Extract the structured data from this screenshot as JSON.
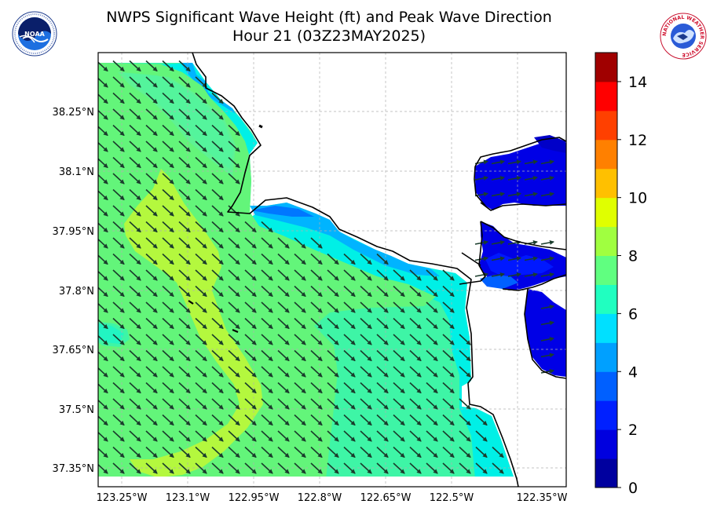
{
  "title": {
    "line1": "NWPS Significant Wave Height (ft) and Peak Wave Direction",
    "line2": "Hour 21 (03Z23MAY2025)"
  },
  "logos": {
    "left": "NOAA",
    "right_ring": "NATIONAL WEATHER SERVICE"
  },
  "map": {
    "lat_labels": [
      "38.25°N",
      "38.1°N",
      "37.95°N",
      "37.8°N",
      "37.65°N",
      "37.5°N",
      "37.35°N"
    ],
    "lon_labels": [
      "123.25°W",
      "123.1°W",
      "122.95°W",
      "122.8°W",
      "122.65°W",
      "122.5°W",
      "122.35°W"
    ],
    "peak_wave_direction": "NW (arrows pointing toward SE)"
  },
  "colorbar": {
    "min": 0,
    "max": 15,
    "ticks": [
      "0",
      "2",
      "4",
      "6",
      "8",
      "10",
      "12",
      "14"
    ],
    "colors": [
      "#00009f",
      "#0000df",
      "#0020ff",
      "#0060ff",
      "#00a0ff",
      "#00e0ff",
      "#20ffc0",
      "#60ff80",
      "#a0ff40",
      "#e0ff00",
      "#ffc000",
      "#ff8000",
      "#ff4000",
      "#ff0000",
      "#a00000"
    ]
  },
  "colors": {
    "land": "#ffffff",
    "coast": "#000000",
    "arrow": "#1a3d2c",
    "grid": "#b0b0b0"
  }
}
